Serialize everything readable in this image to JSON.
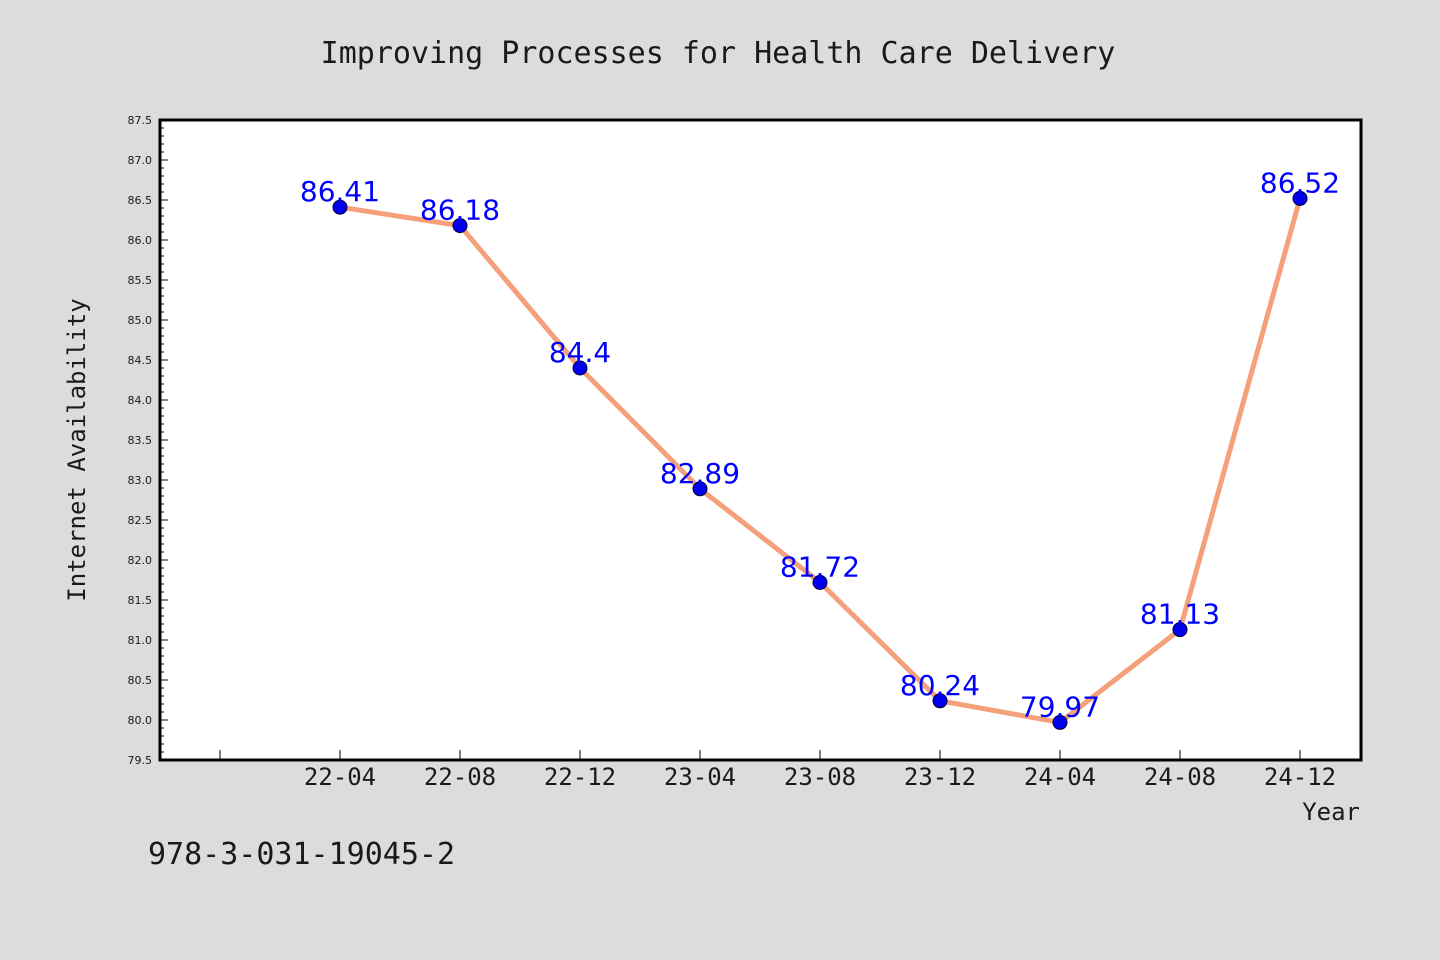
{
  "colors": {
    "background": "#dcdcdc",
    "plot_background": "#ffffff",
    "line": "#f4a07a",
    "marker": "#0000ee",
    "data_label": "#0000ff",
    "text": "#1a1a1a"
  },
  "footer_text": "978-3-031-19045-2",
  "chart_data": {
    "type": "line",
    "title": "Improving Processes for Health Care Delivery",
    "xlabel": "Year",
    "ylabel": "Internet Availability",
    "x": [
      "22-04",
      "22-08",
      "22-12",
      "23-04",
      "23-08",
      "23-12",
      "24-04",
      "24-08",
      "24-12"
    ],
    "series": [
      {
        "values": [
          86.41,
          86.18,
          84.4,
          82.89,
          81.72,
          80.24,
          79.97,
          81.13,
          86.52
        ]
      }
    ],
    "data_labels": [
      "86.41",
      "86.18",
      "84.4",
      "82.89",
      "81.72",
      "80.24",
      "79.97",
      "81.13",
      "86.52"
    ],
    "ylim": [
      79.5,
      87.5
    ],
    "yticks": [
      79.5,
      80.0,
      80.5,
      81.0,
      81.5,
      82.0,
      82.5,
      83.0,
      83.5,
      84.0,
      84.5,
      85.0,
      85.5,
      86.0,
      86.5,
      87.0,
      87.5
    ],
    "ytick_labels": [
      "79.5",
      "80.0",
      "80.5",
      "81.0",
      "81.5",
      "82.0",
      "82.5",
      "83.0",
      "83.5",
      "84.0",
      "84.5",
      "85.0",
      "85.5",
      "86.0",
      "86.5",
      "87.0",
      "87.5"
    ],
    "grid": false,
    "legend": "none",
    "markers": true
  }
}
